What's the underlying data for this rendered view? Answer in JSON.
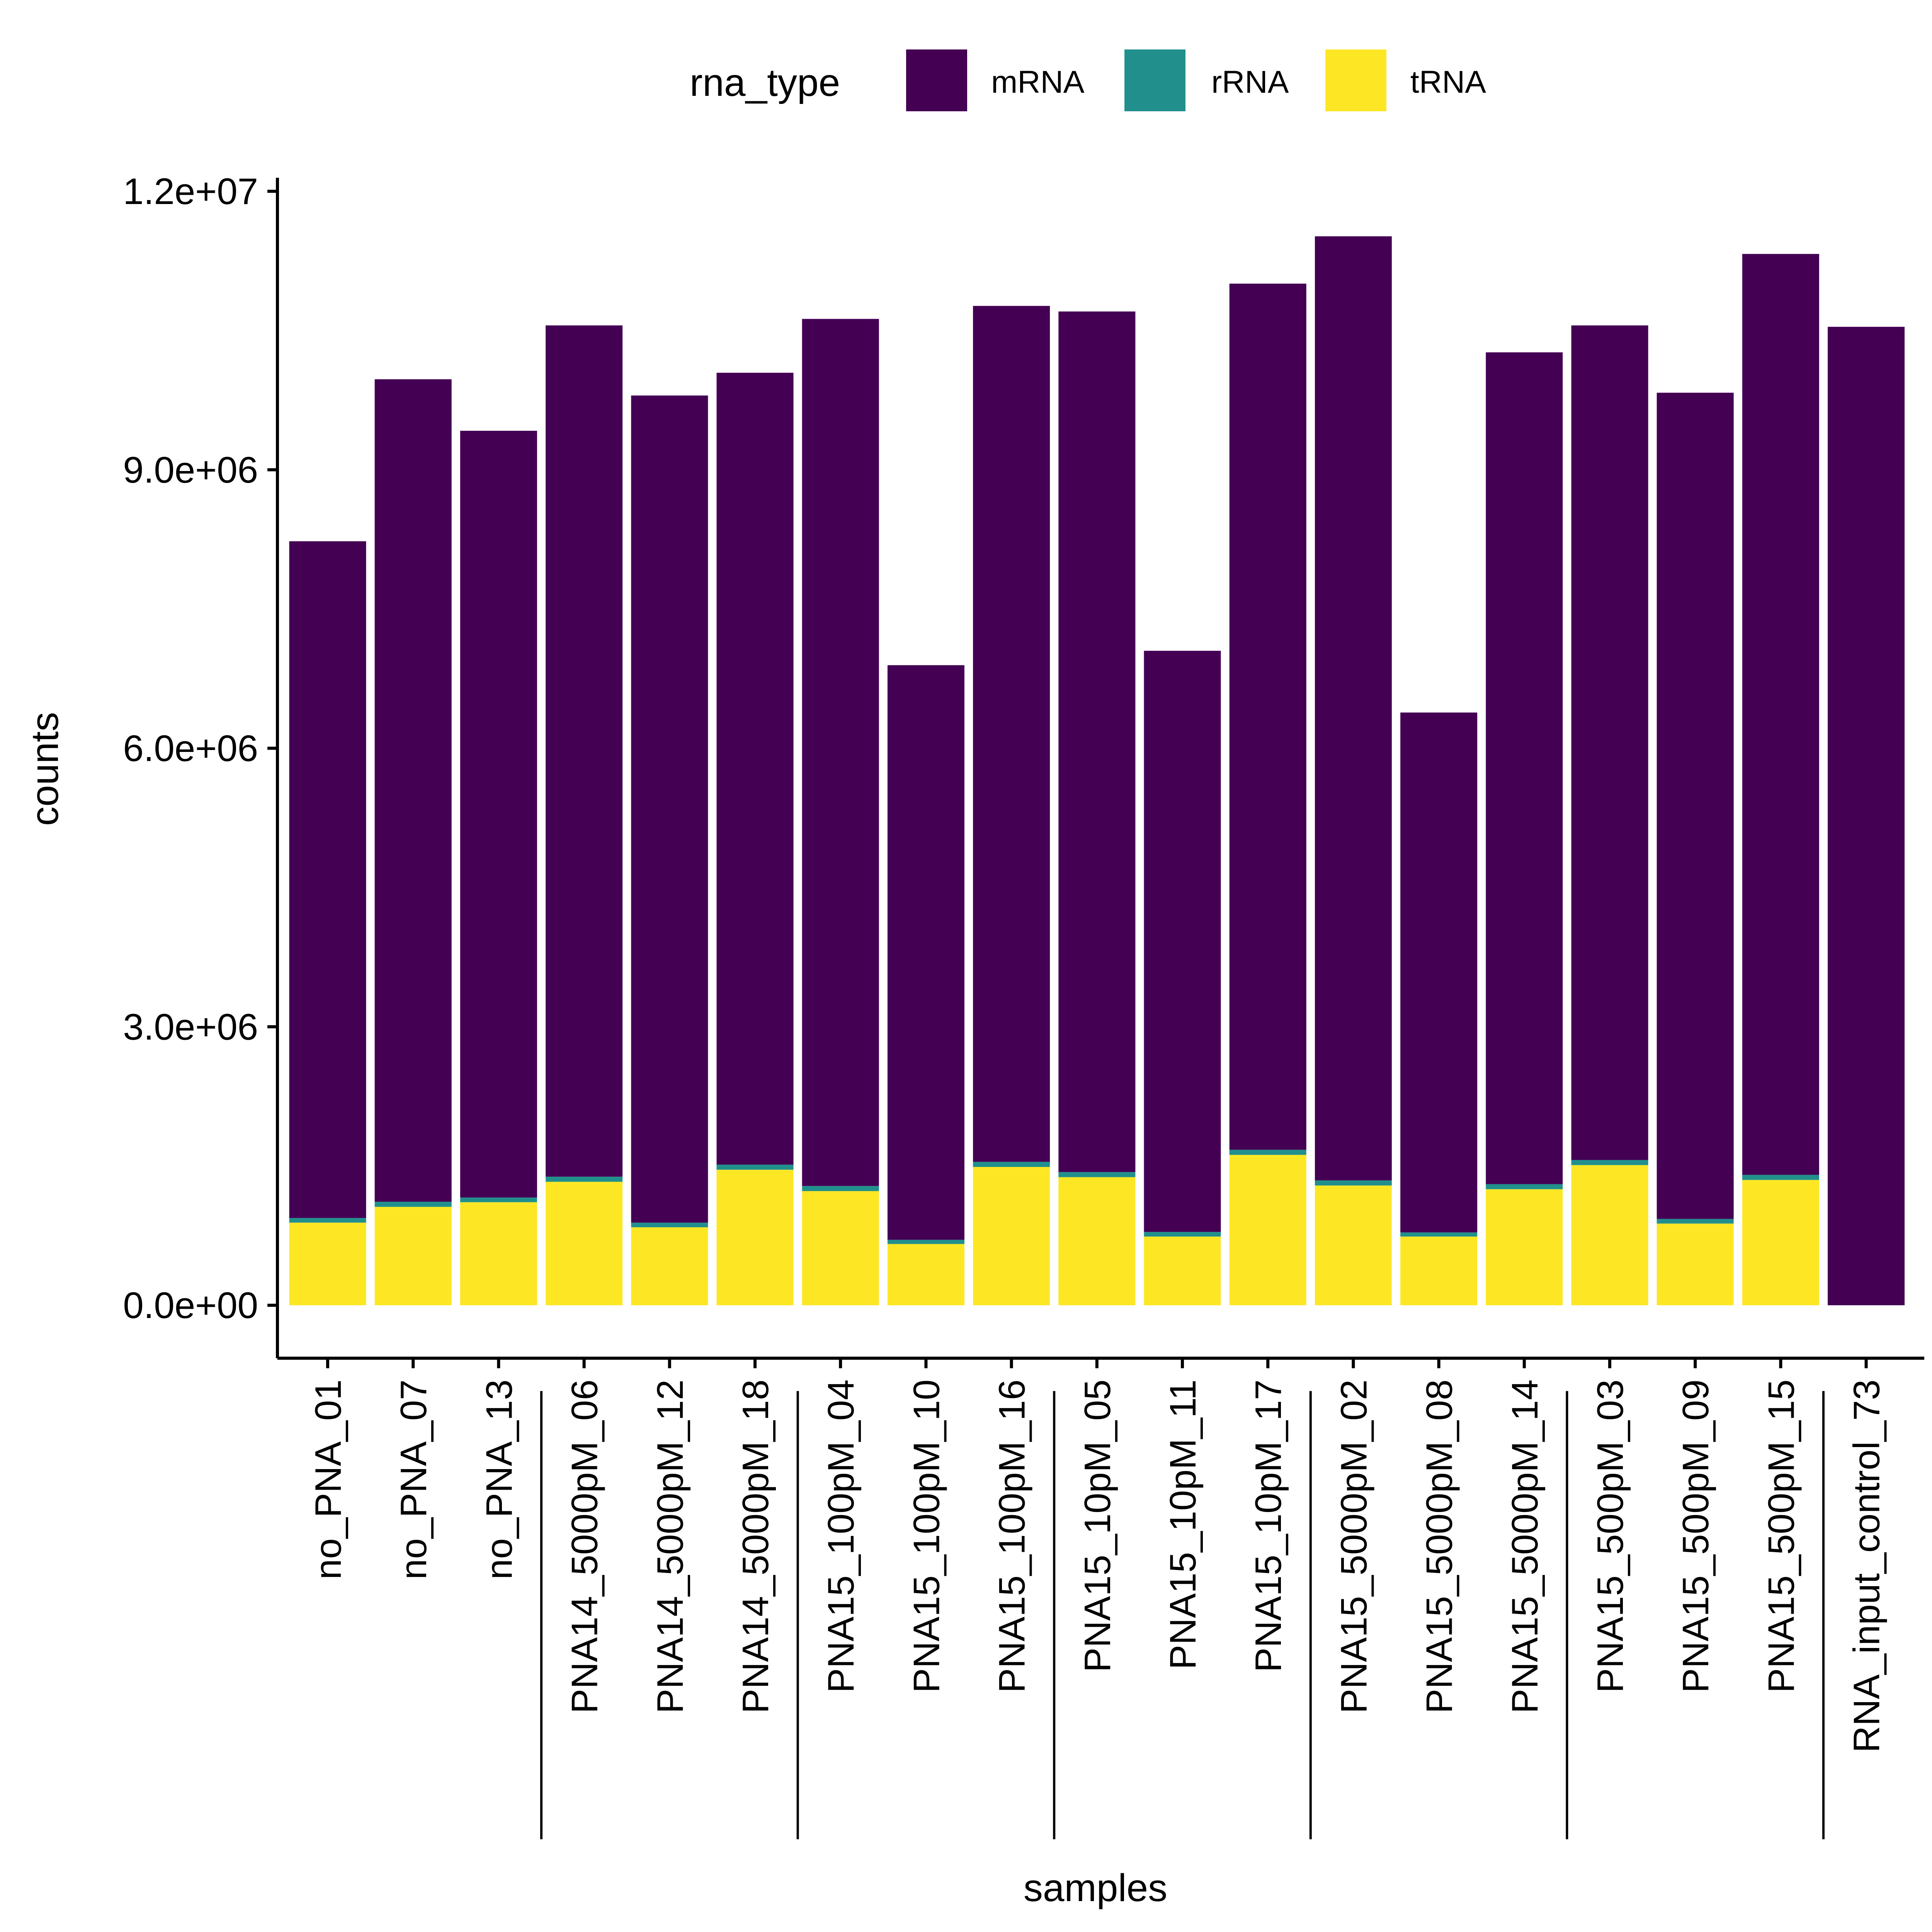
{
  "chart_data": {
    "type": "bar",
    "stacked": true,
    "xlabel": "samples",
    "ylabel": "counts",
    "ylim": [
      -560000,
      12000000
    ],
    "yticks": [
      0,
      3000000,
      6000000,
      9000000,
      12000000
    ],
    "ytick_labels": [
      "0.0e+00",
      "3.0e+06",
      "6.0e+06",
      "9.0e+06",
      "1.2e+07"
    ],
    "grid": false,
    "legend_position": "top",
    "legend": {
      "title": "rna_type",
      "entries": [
        {
          "name": "mRNA",
          "color": "#440154"
        },
        {
          "name": "rRNA",
          "color": "#21908C"
        },
        {
          "name": "tRNA",
          "color": "#FDE725"
        }
      ]
    },
    "categories": [
      "no_PNA_01",
      "no_PNA_07",
      "no_PNA_13",
      "PNA14_5000pM_06",
      "PNA14_5000pM_12",
      "PNA14_5000pM_18",
      "PNA15_100pM_04",
      "PNA15_100pM_10",
      "PNA15_100pM_16",
      "PNA15_10pM_05",
      "PNA15_10pM_11",
      "PNA15_10pM_17",
      "PNA15_5000pM_02",
      "PNA15_5000pM_08",
      "PNA15_5000pM_14",
      "PNA15_500pM_03",
      "PNA15_500pM_09",
      "PNA15_500pM_15",
      "RNA_input_control_73"
    ],
    "group_boundaries_after": [
      2,
      5,
      8,
      11,
      14,
      17
    ],
    "series": [
      {
        "name": "tRNA",
        "color": "#FDE725",
        "values": [
          890000,
          1060000,
          1110000,
          1330000,
          840000,
          1460000,
          1230000,
          660000,
          1490000,
          1380000,
          740000,
          1620000,
          1290000,
          740000,
          1250000,
          1510000,
          880000,
          1350000,
          0
        ]
      },
      {
        "name": "rRNA",
        "color": "#21908C",
        "values": [
          50000,
          55000,
          50000,
          55000,
          50000,
          55000,
          55000,
          45000,
          55000,
          55000,
          50000,
          55000,
          55000,
          45000,
          55000,
          55000,
          50000,
          55000,
          0
        ]
      },
      {
        "name": "mRNA",
        "color": "#440154",
        "values": [
          7290000,
          8860000,
          8260000,
          9170000,
          8910000,
          8530000,
          9340000,
          6190000,
          9220000,
          9270000,
          6260000,
          9330000,
          10170000,
          5600000,
          8960000,
          8990000,
          8900000,
          9920000,
          10540000
        ]
      }
    ]
  }
}
